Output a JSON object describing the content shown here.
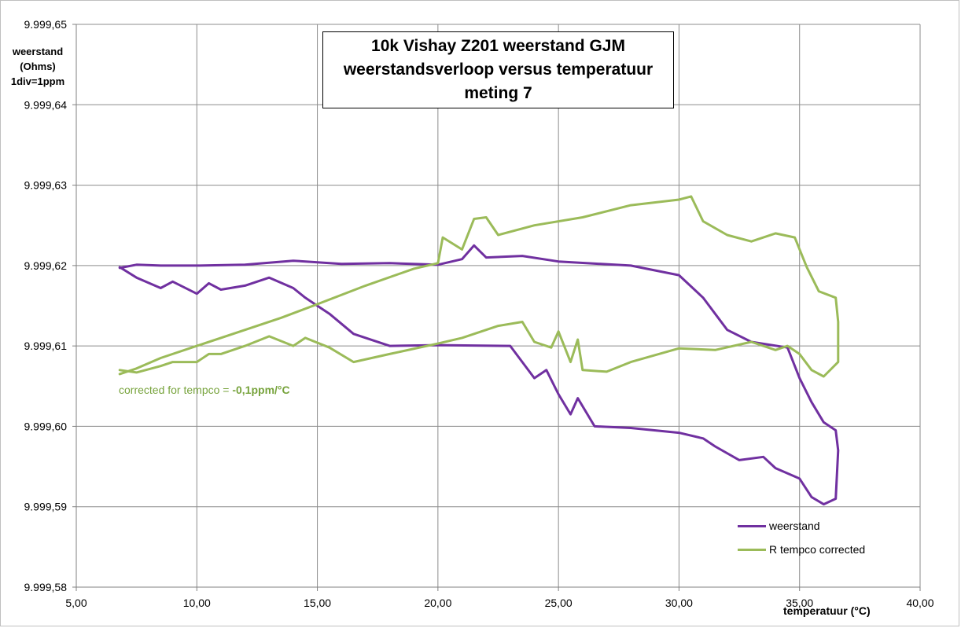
{
  "chart_data": {
    "type": "line",
    "title_lines": [
      "10k Vishay  Z201 weerstand GJM",
      "weerstandsverloop versus temperatuur",
      "meting 7"
    ],
    "ylabel_lines": [
      "weerstand",
      "(Ohms)",
      "1div=1ppm"
    ],
    "xlabel": "temperatuur (°C)",
    "x_ticks": [
      "5,00",
      "10,00",
      "15,00",
      "20,00",
      "25,00",
      "30,00",
      "35,00",
      "40,00"
    ],
    "y_ticks": [
      "9.999,58",
      "9.999,59",
      "9.999,60",
      "9.999,61",
      "9.999,62",
      "9.999,63",
      "9.999,64",
      "9.999,65"
    ],
    "xlim": [
      5,
      40
    ],
    "ylim": [
      9999.58,
      9999.65
    ],
    "grid": true,
    "legend_position": "bottom-right",
    "annotation": {
      "text": "corrected for tempco = ",
      "bold": "-0,1ppm/°C"
    },
    "series": [
      {
        "name": "weerstand",
        "color": "#7030a0",
        "points": [
          [
            6.8,
            9999.6197
          ],
          [
            7.5,
            9999.6201
          ],
          [
            8.5,
            9999.62
          ],
          [
            10,
            9999.62
          ],
          [
            12,
            9999.6201
          ],
          [
            14,
            9999.6206
          ],
          [
            16,
            9999.6202
          ],
          [
            18,
            9999.6203
          ],
          [
            20,
            9999.6201
          ],
          [
            21,
            9999.6208
          ],
          [
            21.5,
            9999.6225
          ],
          [
            22,
            9999.621
          ],
          [
            23.5,
            9999.6212
          ],
          [
            25,
            9999.6205
          ],
          [
            28,
            9999.62
          ],
          [
            30,
            9999.6188
          ],
          [
            31,
            9999.616
          ],
          [
            32,
            9999.612
          ],
          [
            33,
            9999.6105
          ],
          [
            34.5,
            9999.6098
          ],
          [
            35,
            9999.606
          ],
          [
            35.5,
            9999.603
          ],
          [
            36,
            9999.6005
          ],
          [
            36.5,
            9999.5995
          ],
          [
            36.6,
            9999.597
          ],
          [
            36.5,
            9999.591
          ],
          [
            36.0,
            9999.5903
          ],
          [
            35.5,
            9999.5912
          ],
          [
            35,
            9999.5935
          ],
          [
            34,
            9999.5948
          ],
          [
            33.5,
            9999.5962
          ],
          [
            32.5,
            9999.5958
          ],
          [
            31.5,
            9999.5975
          ],
          [
            31,
            9999.5985
          ],
          [
            30,
            9999.5992
          ],
          [
            28,
            9999.5998
          ],
          [
            26.5,
            9999.6
          ],
          [
            25.8,
            9999.6035
          ],
          [
            25.5,
            9999.6015
          ],
          [
            25,
            9999.604
          ],
          [
            24.5,
            9999.607
          ],
          [
            24,
            9999.606
          ],
          [
            23,
            9999.61
          ],
          [
            20,
            9999.6101
          ],
          [
            18,
            9999.61
          ],
          [
            16.5,
            9999.6115
          ],
          [
            15.5,
            9999.614
          ],
          [
            14.5,
            9999.616
          ],
          [
            14,
            9999.6172
          ],
          [
            13,
            9999.6185
          ],
          [
            12,
            9999.6175
          ],
          [
            11,
            9999.617
          ],
          [
            10.5,
            9999.6178
          ],
          [
            10,
            9999.6165
          ],
          [
            9,
            9999.618
          ],
          [
            8.5,
            9999.6172
          ],
          [
            7.5,
            9999.6185
          ],
          [
            6.8,
            9999.6198
          ]
        ]
      },
      {
        "name": "R tempco  corrected",
        "color": "#9bbb59",
        "points": [
          [
            6.8,
            9999.6065
          ],
          [
            7.5,
            9999.6072
          ],
          [
            8.5,
            9999.6085
          ],
          [
            10,
            9999.61
          ],
          [
            12,
            9999.612
          ],
          [
            13.5,
            9999.6135
          ],
          [
            15,
            9999.6152
          ],
          [
            17,
            9999.6175
          ],
          [
            19,
            9999.6196
          ],
          [
            20,
            9999.6203
          ],
          [
            20.2,
            9999.6235
          ],
          [
            21,
            9999.622
          ],
          [
            21.5,
            9999.6258
          ],
          [
            22,
            9999.626
          ],
          [
            22.5,
            9999.6238
          ],
          [
            24,
            9999.625
          ],
          [
            26,
            9999.626
          ],
          [
            28,
            9999.6275
          ],
          [
            30,
            9999.6282
          ],
          [
            30.5,
            9999.6286
          ],
          [
            31,
            9999.6255
          ],
          [
            32,
            9999.6238
          ],
          [
            33,
            9999.623
          ],
          [
            34,
            9999.624
          ],
          [
            34.8,
            9999.6235
          ],
          [
            35.3,
            9999.6198
          ],
          [
            35.8,
            9999.6168
          ],
          [
            36.5,
            9999.616
          ],
          [
            36.6,
            9999.613
          ],
          [
            36.6,
            9999.608
          ],
          [
            36,
            9999.6062
          ],
          [
            35.5,
            9999.607
          ],
          [
            35,
            9999.609
          ],
          [
            34.5,
            9999.61
          ],
          [
            34,
            9999.6095
          ],
          [
            33,
            9999.6105
          ],
          [
            31.5,
            9999.6095
          ],
          [
            30,
            9999.6097
          ],
          [
            28,
            9999.608
          ],
          [
            27,
            9999.6068
          ],
          [
            26,
            9999.607
          ],
          [
            25.8,
            9999.6108
          ],
          [
            25.5,
            9999.608
          ],
          [
            25,
            9999.6118
          ],
          [
            24.7,
            9999.6098
          ],
          [
            24,
            9999.6105
          ],
          [
            23.5,
            9999.613
          ],
          [
            22.5,
            9999.6125
          ],
          [
            21,
            9999.611
          ],
          [
            20,
            9999.6103
          ],
          [
            18,
            9999.609
          ],
          [
            16.5,
            9999.608
          ],
          [
            15.5,
            9999.6098
          ],
          [
            14.5,
            9999.611
          ],
          [
            14,
            9999.61
          ],
          [
            13,
            9999.6112
          ],
          [
            12,
            9999.61
          ],
          [
            11,
            9999.609
          ],
          [
            10.5,
            9999.609
          ],
          [
            10,
            9999.608
          ],
          [
            9,
            9999.608
          ],
          [
            8.5,
            9999.6075
          ],
          [
            7.5,
            9999.6067
          ],
          [
            6.8,
            9999.607
          ]
        ]
      }
    ]
  }
}
